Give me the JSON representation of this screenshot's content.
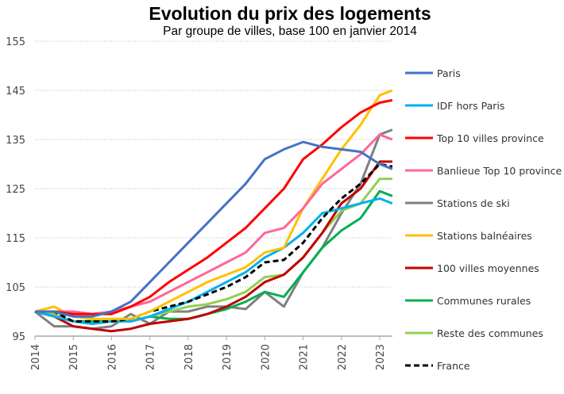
{
  "chart_data": {
    "type": "line",
    "title": "Evolution du prix des logements",
    "subtitle": "Par groupe de villes, base 100 en janvier 2014",
    "xlabel": "",
    "ylabel": "",
    "ylim": [
      95,
      155
    ],
    "yticks": [
      95,
      105,
      115,
      125,
      135,
      145,
      155
    ],
    "xticks": [
      2014,
      2015,
      2016,
      2017,
      2018,
      2019,
      2020,
      2021,
      2022,
      2023
    ],
    "xlim": [
      2014,
      2023.33
    ],
    "grid": "horizontal dotted",
    "legend": "right",
    "x": [
      2014,
      2014.5,
      2015,
      2015.5,
      2016,
      2016.5,
      2017,
      2017.5,
      2018,
      2018.5,
      2019,
      2019.5,
      2020,
      2020.5,
      2021,
      2021.5,
      2022,
      2022.5,
      2023,
      2023.33
    ],
    "series": [
      {
        "name": "Paris",
        "color": "#4472C4",
        "dash": false,
        "values": [
          100,
          100,
          99,
          99,
          100,
          102,
          106,
          110,
          114,
          118,
          122,
          126,
          131,
          133,
          134.5,
          133.5,
          133,
          132.5,
          130,
          129
        ]
      },
      {
        "name": "IDF hors Paris",
        "color": "#00B0F0",
        "dash": false,
        "values": [
          100,
          99,
          98,
          97.5,
          98,
          98,
          99,
          100.5,
          102,
          104,
          106,
          108,
          111,
          113,
          116,
          120,
          121,
          122,
          123,
          122
        ]
      },
      {
        "name": "Top 10 villes province",
        "color": "#FF0000",
        "dash": false,
        "values": [
          100,
          100,
          99.5,
          99.5,
          99.5,
          101,
          103,
          106,
          108.5,
          111,
          114,
          117,
          121,
          125,
          131,
          134,
          137.5,
          140.5,
          142.5,
          143
        ]
      },
      {
        "name": "Banlieue Top 10 province",
        "color": "#FF6699",
        "dash": false,
        "values": [
          100,
          100,
          100,
          99.5,
          100,
          101,
          102,
          104,
          106,
          108,
          110,
          112,
          116,
          117,
          121,
          126,
          129,
          132,
          136,
          135
        ]
      },
      {
        "name": "Stations de ski",
        "color": "#808080",
        "dash": false,
        "values": [
          100,
          97,
          97,
          96.5,
          97,
          99.5,
          97.5,
          100,
          100,
          101,
          101,
          100.5,
          104,
          101,
          108,
          113,
          120,
          126,
          136,
          137
        ]
      },
      {
        "name": "Stations balnéaires",
        "color": "#FFC000",
        "dash": false,
        "values": [
          100,
          101,
          99,
          98.5,
          98.5,
          98.5,
          100,
          102,
          104,
          106,
          107.5,
          109,
          112,
          113,
          121,
          127,
          133,
          138,
          144,
          145
        ]
      },
      {
        "name": "100 villes moyennes",
        "color": "#C00000",
        "dash": false,
        "values": [
          100,
          99,
          97,
          96.5,
          96,
          96.5,
          97.5,
          98,
          98.5,
          99.5,
          101,
          103,
          106,
          107.5,
          111,
          116,
          122,
          125,
          130.5,
          130.5
        ]
      },
      {
        "name": "Communes rurales",
        "color": "#00B050",
        "dash": false,
        "values": [
          100,
          99.5,
          98,
          98,
          98,
          98,
          99,
          98.5,
          98.5,
          99.5,
          100.5,
          102,
          104,
          103,
          108,
          113,
          116.5,
          119,
          124.5,
          123.5
        ]
      },
      {
        "name": "Reste des communes",
        "color": "#92D050",
        "dash": false,
        "values": [
          100,
          99.5,
          98,
          97.5,
          98,
          98,
          99,
          100,
          101,
          101.5,
          102.5,
          104,
          107,
          107.5,
          111,
          116,
          120.5,
          122,
          127,
          127
        ]
      },
      {
        "name": "France",
        "color": "#000000",
        "dash": true,
        "values": [
          100,
          100,
          98,
          98,
          98,
          98.5,
          100,
          101,
          102,
          103.5,
          105,
          107,
          110,
          110.5,
          114,
          119,
          123,
          126,
          130,
          129.5
        ]
      }
    ]
  }
}
